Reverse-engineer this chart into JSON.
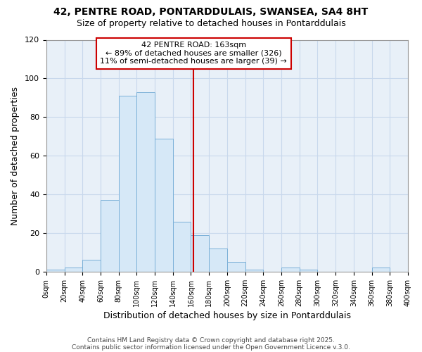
{
  "title1": "42, PENTRE ROAD, PONTARDDULAIS, SWANSEA, SA4 8HT",
  "title2": "Size of property relative to detached houses in Pontarddulais",
  "xlabel": "Distribution of detached houses by size in Pontarddulais",
  "ylabel": "Number of detached properties",
  "bin_edges": [
    0,
    20,
    40,
    60,
    80,
    100,
    120,
    140,
    160,
    180,
    200,
    220,
    240,
    260,
    280,
    300,
    320,
    340,
    360,
    380,
    400
  ],
  "counts": [
    1,
    2,
    6,
    37,
    91,
    93,
    69,
    26,
    19,
    12,
    5,
    1,
    0,
    2,
    1,
    0,
    0,
    0,
    2,
    0
  ],
  "property_size": 163,
  "annotation_line1": "42 PENTRE ROAD: 163sqm",
  "annotation_line2": "← 89% of detached houses are smaller (326)",
  "annotation_line3": "11% of semi-detached houses are larger (39) →",
  "bar_color": "#d6e8f7",
  "bar_edge_color": "#7ab0d8",
  "vline_color": "#cc0000",
  "annotation_box_color": "#ffffff",
  "annotation_box_edge_color": "#cc0000",
  "grid_color": "#c8d8ec",
  "background_color": "#ffffff",
  "plot_bg_color": "#e8f0f8",
  "footer_text1": "Contains HM Land Registry data © Crown copyright and database right 2025.",
  "footer_text2": "Contains public sector information licensed under the Open Government Licence v.3.0.",
  "ylim": [
    0,
    120
  ],
  "xlim": [
    0,
    400
  ]
}
